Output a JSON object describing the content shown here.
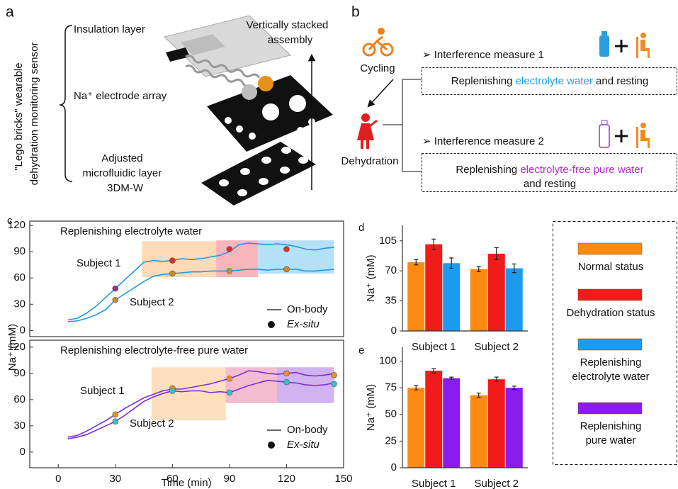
{
  "panel_a": {
    "label": "a",
    "side_title": [
      "\"Lego bricks\" wearable",
      "dehydration monitoring sensor"
    ],
    "layers": [
      {
        "text": [
          "Insulation layer"
        ],
        "color": "#1b8fd6"
      },
      {
        "text": [
          "Na⁺ electrode array"
        ],
        "color": "#d4791a"
      },
      {
        "text": [
          "Adjusted",
          "microfluidic layer",
          "3DM-W"
        ],
        "color": "#7b3fb5"
      }
    ],
    "assembly": [
      "Vertically stacked",
      "assembly"
    ]
  },
  "panel_b": {
    "label": "b",
    "cycling": "Cycling",
    "dehydration": "Dehydration",
    "measures": [
      {
        "title": "➢ Interference measure 1",
        "lines": [
          [
            {
              "text": "Replenishing "
            },
            {
              "text": "electrolyte water",
              "color": "#1aa3e8"
            },
            {
              "text": " and resting"
            }
          ]
        ]
      },
      {
        "title": "➢ Interference measure 2",
        "lines": [
          [
            {
              "text": "Replenishing "
            },
            {
              "text": "electrolyte-free pure water",
              "color": "#b52bd0"
            }
          ],
          [
            {
              "text": "and resting"
            }
          ]
        ]
      }
    ]
  },
  "chart_data": [
    {
      "type": "line",
      "panel_label": "c",
      "title": "Replenishing electrolyte water",
      "ylabel": "Na⁺ (mM)",
      "xlim": [
        -15,
        150
      ],
      "ylim": [
        -7,
        125
      ],
      "yticks": [
        0,
        30,
        60,
        90,
        120
      ],
      "legend": [
        "On-body",
        "Ex-situ"
      ],
      "regions": [
        {
          "color": "#fdd3ab",
          "xlim": [
            44,
            83
          ],
          "ylim": [
            61,
            102
          ]
        },
        {
          "color": "#f7a9b0",
          "xlim": [
            83,
            105
          ],
          "ylim": [
            61,
            103
          ]
        },
        {
          "color": "#a8dcf7",
          "xlim": [
            105,
            145
          ],
          "ylim": [
            65,
            103
          ]
        }
      ],
      "series": [
        {
          "name": "Subject 1",
          "color": "#1e9be0",
          "x": [
            5,
            10,
            15,
            20,
            25,
            30,
            35,
            40,
            45,
            50,
            55,
            60,
            65,
            70,
            75,
            80,
            85,
            90,
            95,
            100,
            105,
            110,
            115,
            120,
            125,
            130,
            135,
            140,
            145
          ],
          "values": [
            12,
            14,
            20,
            28,
            38,
            48,
            58,
            68,
            78,
            80,
            79,
            80,
            82,
            81,
            82,
            84,
            86,
            90,
            98,
            100,
            99,
            98,
            99,
            98,
            96,
            93,
            92,
            94,
            95
          ],
          "exsitu": {
            "x": [
              30,
              60,
              90,
              120
            ],
            "values": [
              48,
              80,
              93,
              93
            ],
            "colors": [
              "#a02b8a",
              "#d9302a",
              "#d9302a",
              "#d9302a"
            ]
          }
        },
        {
          "name": "Subject 2",
          "color": "#1e9be0",
          "x": [
            5,
            10,
            15,
            20,
            25,
            30,
            35,
            40,
            45,
            50,
            55,
            60,
            65,
            70,
            75,
            80,
            85,
            90,
            95,
            100,
            105,
            110,
            115,
            120,
            125,
            130,
            135,
            140,
            145
          ],
          "values": [
            10,
            11,
            14,
            18,
            24,
            35,
            42,
            49,
            56,
            62,
            64,
            65,
            66,
            67,
            67,
            68,
            68,
            68,
            69,
            70,
            70,
            69,
            70,
            70,
            70,
            68,
            68,
            69,
            70
          ],
          "exsitu": {
            "x": [
              30,
              60,
              90,
              120
            ],
            "values": [
              35,
              65,
              68,
              70
            ],
            "colors": [
              "#c98b2f",
              "#c98b2f",
              "#c98b2f",
              "#c98b2f"
            ]
          }
        }
      ]
    },
    {
      "type": "line",
      "title": "Replenishing electrolyte-free pure water",
      "xlabel": "Time (min)",
      "xlim": [
        -15,
        150
      ],
      "ylim": [
        -18,
        128
      ],
      "xticks": [
        0,
        30,
        60,
        90,
        120,
        150
      ],
      "yticks": [
        0,
        30,
        60,
        90,
        120
      ],
      "legend": [
        "On-body",
        "Ex-situ"
      ],
      "regions": [
        {
          "color": "#fdd9b5",
          "xlim": [
            49,
            88
          ],
          "ylim": [
            36,
            97
          ]
        },
        {
          "color": "#f2b2c7",
          "xlim": [
            88,
            115
          ],
          "ylim": [
            56,
            97
          ]
        },
        {
          "color": "#c9a6ee",
          "xlim": [
            115,
            145
          ],
          "ylim": [
            56,
            97
          ]
        }
      ],
      "series": [
        {
          "name": "Subject 1",
          "color": "#7a2fd6",
          "x": [
            5,
            10,
            15,
            20,
            25,
            30,
            35,
            40,
            45,
            50,
            55,
            60,
            65,
            70,
            75,
            80,
            85,
            90,
            95,
            100,
            105,
            110,
            115,
            120,
            125,
            130,
            135,
            140,
            145
          ],
          "values": [
            17,
            19,
            24,
            30,
            36,
            43,
            50,
            56,
            62,
            66,
            70,
            72,
            72,
            74,
            76,
            78,
            81,
            84,
            88,
            93,
            92,
            90,
            89,
            90,
            91,
            88,
            87,
            88,
            90
          ],
          "exsitu": {
            "x": [
              30,
              60,
              90,
              120,
              145
            ],
            "values": [
              43,
              73,
              84,
              90,
              88
            ],
            "colors": [
              "#e8902a",
              "#e8902a",
              "#e8902a",
              "#e8902a",
              "#e8902a"
            ]
          }
        },
        {
          "name": "Subject 2",
          "color": "#7a2fd6",
          "x": [
            5,
            10,
            15,
            20,
            25,
            30,
            35,
            40,
            45,
            50,
            55,
            60,
            65,
            70,
            75,
            80,
            85,
            90,
            95,
            100,
            105,
            110,
            115,
            120,
            125,
            130,
            135,
            140,
            145
          ],
          "values": [
            15,
            17,
            20,
            25,
            30,
            35,
            42,
            50,
            58,
            63,
            67,
            70,
            69,
            70,
            70,
            68,
            69,
            68,
            72,
            76,
            79,
            82,
            81,
            80,
            79,
            77,
            76,
            77,
            79
          ],
          "exsitu": {
            "x": [
              30,
              60,
              90,
              120,
              145
            ],
            "values": [
              35,
              70,
              68,
              80,
              78
            ],
            "colors": [
              "#33c4c4",
              "#33c4c4",
              "#33c4c4",
              "#33c4c4",
              "#33c4c4"
            ]
          }
        }
      ]
    },
    {
      "type": "bar",
      "panel_label": "d",
      "ylabel": "Na⁺ (mM)",
      "categories": [
        "Subject 1",
        "Subject 2"
      ],
      "ylim": [
        0,
        123
      ],
      "yticks": [
        0,
        35,
        70,
        105
      ],
      "series": [
        {
          "color": "#ff8a12",
          "values": [
            80,
            72
          ],
          "errors": [
            3,
            3
          ]
        },
        {
          "color": "#f01c1c",
          "values": [
            101,
            90
          ],
          "errors": [
            6,
            7
          ]
        },
        {
          "color": "#1c9cf0",
          "values": [
            79,
            73
          ],
          "errors": [
            6,
            5
          ]
        }
      ]
    },
    {
      "type": "bar",
      "panel_label": "e",
      "ylabel": "Na⁺ (mM)",
      "categories": [
        "Subject 1",
        "Subject 2"
      ],
      "ylim": [
        0,
        113
      ],
      "yticks": [
        0,
        25,
        50,
        75,
        100
      ],
      "series": [
        {
          "color": "#ff8a12",
          "values": [
            75,
            68
          ],
          "errors": [
            2,
            2
          ]
        },
        {
          "color": "#f01c1c",
          "values": [
            91,
            83
          ],
          "errors": [
            2,
            2
          ]
        },
        {
          "color": "#8a1cf0",
          "values": [
            84,
            75
          ],
          "errors": [
            1,
            1.5
          ]
        }
      ]
    }
  ],
  "legend": [
    {
      "label": [
        "Normal status"
      ],
      "color": "#ff8a12"
    },
    {
      "label": [
        "Dehydration status"
      ],
      "color": "#f01c1c"
    },
    {
      "label": [
        "Replenishing",
        "electrolyte water"
      ],
      "color": "#1c9cf0"
    },
    {
      "label": [
        "Replenishing",
        "pure water"
      ],
      "color": "#8a1cf0"
    }
  ]
}
